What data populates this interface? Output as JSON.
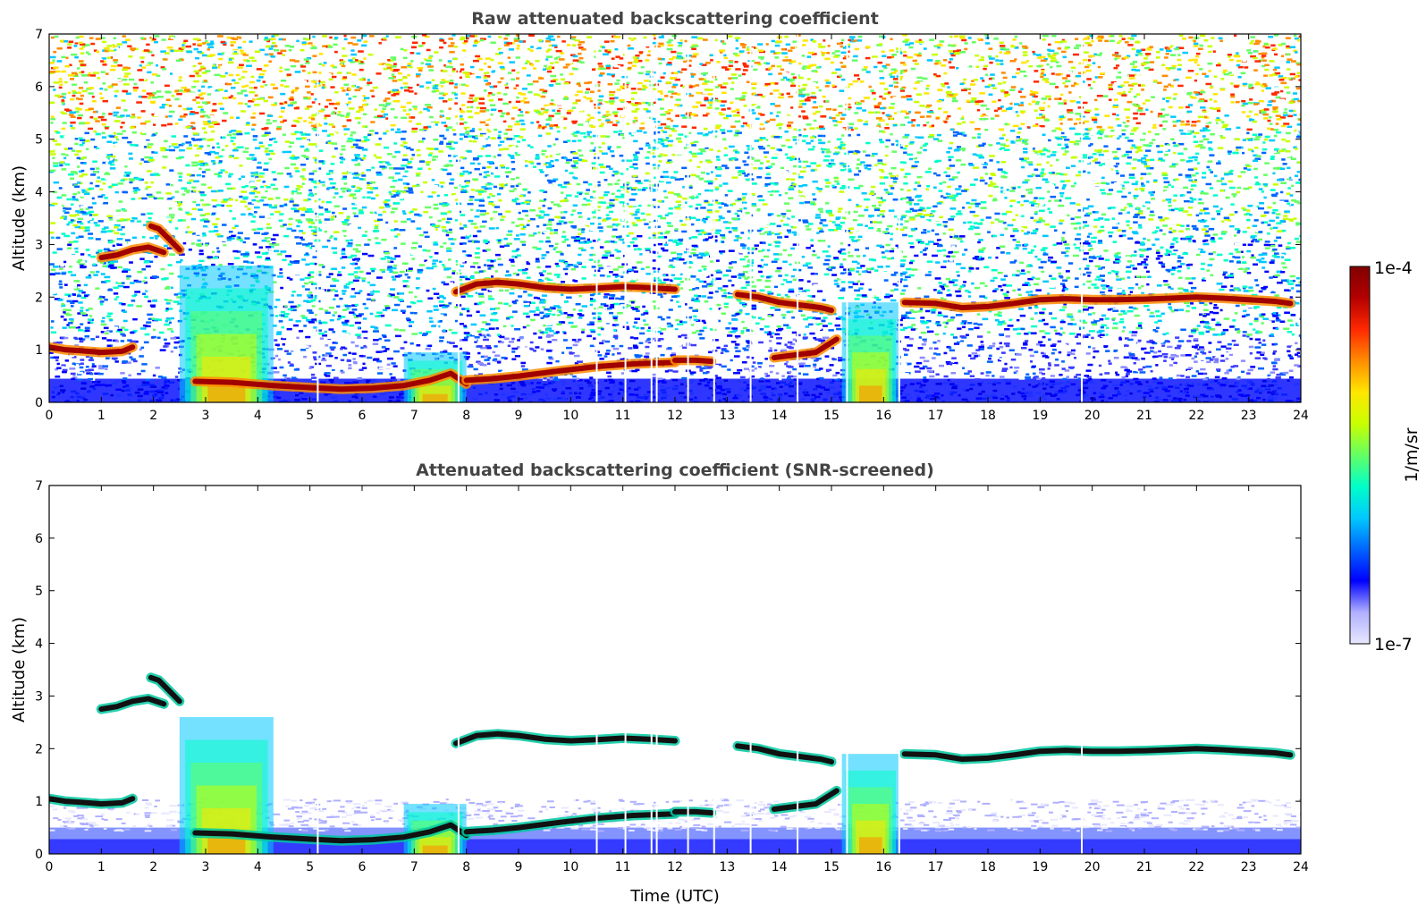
{
  "chart_data": [
    {
      "type": "heatmap",
      "title": "Raw attenuated backscattering coefficient",
      "xlabel": "",
      "ylabel": "Altitude (km)",
      "xlim": [
        0,
        24
      ],
      "ylim": [
        0,
        7
      ],
      "x_ticks": [
        "0",
        "1",
        "2",
        "3",
        "4",
        "5",
        "6",
        "7",
        "8",
        "9",
        "10",
        "11",
        "12",
        "13",
        "14",
        "15",
        "16",
        "17",
        "18",
        "19",
        "20",
        "21",
        "22",
        "23",
        "24"
      ],
      "y_ticks": [
        "0",
        "1",
        "2",
        "3",
        "4",
        "5",
        "6",
        "7"
      ],
      "screened": false,
      "layers": [
        {
          "x": [
            0.0,
            0.3,
            0.6,
            1.0,
            1.4,
            1.6
          ],
          "y": [
            1.05,
            1.0,
            0.98,
            0.95,
            0.97,
            1.05
          ]
        },
        {
          "x": [
            1.0,
            1.3,
            1.6,
            1.9,
            2.2
          ],
          "y": [
            2.75,
            2.8,
            2.9,
            2.95,
            2.85
          ]
        },
        {
          "x": [
            1.95,
            2.1,
            2.3,
            2.5
          ],
          "y": [
            3.35,
            3.3,
            3.1,
            2.9
          ]
        },
        {
          "x": [
            2.8,
            3.5,
            4.3,
            5.0,
            5.6,
            6.2,
            6.8,
            7.3,
            7.7,
            8.0
          ],
          "y": [
            0.4,
            0.38,
            0.32,
            0.28,
            0.25,
            0.27,
            0.32,
            0.42,
            0.55,
            0.35
          ]
        },
        {
          "x": [
            8.0,
            8.5,
            9.0,
            9.8,
            10.5,
            11.2,
            12.0
          ],
          "y": [
            0.42,
            0.45,
            0.5,
            0.6,
            0.68,
            0.73,
            0.76
          ]
        },
        {
          "x": [
            12.0,
            12.4,
            12.7
          ],
          "y": [
            0.8,
            0.8,
            0.78
          ]
        },
        {
          "x": [
            7.8,
            8.2,
            8.6,
            9.0,
            9.5,
            10.0,
            10.5,
            11.0,
            11.5,
            12.0
          ],
          "y": [
            2.1,
            2.25,
            2.28,
            2.25,
            2.18,
            2.15,
            2.17,
            2.2,
            2.18,
            2.15
          ]
        },
        {
          "x": [
            13.2,
            13.6,
            14.0,
            14.4,
            14.8,
            15.0
          ],
          "y": [
            2.05,
            2.0,
            1.9,
            1.85,
            1.8,
            1.75
          ]
        },
        {
          "x": [
            13.9,
            14.3,
            14.7,
            15.1
          ],
          "y": [
            0.85,
            0.9,
            0.95,
            1.2
          ]
        },
        {
          "x": [
            16.4,
            17.0,
            17.5,
            18.0,
            18.5,
            19.0,
            19.5,
            20.0,
            20.5,
            21.0,
            21.5,
            22.0,
            22.5,
            23.0,
            23.5,
            23.8
          ],
          "y": [
            1.9,
            1.88,
            1.8,
            1.82,
            1.88,
            1.95,
            1.97,
            1.95,
            1.95,
            1.96,
            1.98,
            2.0,
            1.98,
            1.95,
            1.92,
            1.88
          ]
        }
      ],
      "aerosol_plumes": [
        {
          "x0": 2.5,
          "x1": 4.3,
          "top": 2.6
        },
        {
          "x0": 6.8,
          "x1": 8.0,
          "top": 0.95
        },
        {
          "x0": 15.2,
          "x1": 16.3,
          "top": 1.9
        }
      ],
      "gaps_x": [
        5.15,
        7.85,
        10.5,
        11.05,
        11.55,
        11.65,
        12.25,
        12.75,
        13.45,
        14.35,
        15.3,
        16.3,
        19.8
      ]
    },
    {
      "type": "heatmap",
      "title": "Attenuated backscattering coefficient (SNR-screened)",
      "xlabel": "Time (UTC)",
      "ylabel": "Altitude (km)",
      "xlim": [
        0,
        24
      ],
      "ylim": [
        0,
        7
      ],
      "x_ticks": [
        "0",
        "1",
        "2",
        "3",
        "4",
        "5",
        "6",
        "7",
        "8",
        "9",
        "10",
        "11",
        "12",
        "13",
        "14",
        "15",
        "16",
        "17",
        "18",
        "19",
        "20",
        "21",
        "22",
        "23",
        "24"
      ],
      "y_ticks": [
        "0",
        "1",
        "2",
        "3",
        "4",
        "5",
        "6",
        "7"
      ],
      "screened": true,
      "layers": [
        {
          "x": [
            0.0,
            0.3,
            0.6,
            1.0,
            1.4,
            1.6
          ],
          "y": [
            1.05,
            1.0,
            0.98,
            0.95,
            0.97,
            1.05
          ]
        },
        {
          "x": [
            1.0,
            1.3,
            1.6,
            1.9,
            2.2
          ],
          "y": [
            2.75,
            2.8,
            2.9,
            2.95,
            2.85
          ]
        },
        {
          "x": [
            1.95,
            2.1,
            2.3,
            2.5
          ],
          "y": [
            3.35,
            3.3,
            3.1,
            2.9
          ]
        },
        {
          "x": [
            2.8,
            3.5,
            4.3,
            5.0,
            5.6,
            6.2,
            6.8,
            7.3,
            7.7,
            8.0
          ],
          "y": [
            0.4,
            0.38,
            0.32,
            0.28,
            0.25,
            0.27,
            0.32,
            0.42,
            0.55,
            0.35
          ]
        },
        {
          "x": [
            8.0,
            8.5,
            9.0,
            9.8,
            10.5,
            11.2,
            12.0
          ],
          "y": [
            0.42,
            0.45,
            0.5,
            0.6,
            0.68,
            0.73,
            0.76
          ]
        },
        {
          "x": [
            12.0,
            12.4,
            12.7
          ],
          "y": [
            0.8,
            0.8,
            0.78
          ]
        },
        {
          "x": [
            7.8,
            8.2,
            8.6,
            9.0,
            9.5,
            10.0,
            10.5,
            11.0,
            11.5,
            12.0
          ],
          "y": [
            2.1,
            2.25,
            2.28,
            2.25,
            2.18,
            2.15,
            2.17,
            2.2,
            2.18,
            2.15
          ]
        },
        {
          "x": [
            13.2,
            13.6,
            14.0,
            14.4,
            14.8,
            15.0
          ],
          "y": [
            2.05,
            2.0,
            1.9,
            1.85,
            1.8,
            1.75
          ]
        },
        {
          "x": [
            13.9,
            14.3,
            14.7,
            15.1
          ],
          "y": [
            0.85,
            0.9,
            0.95,
            1.2
          ]
        },
        {
          "x": [
            16.4,
            17.0,
            17.5,
            18.0,
            18.5,
            19.0,
            19.5,
            20.0,
            20.5,
            21.0,
            21.5,
            22.0,
            22.5,
            23.0,
            23.5,
            23.8
          ],
          "y": [
            1.9,
            1.88,
            1.8,
            1.82,
            1.88,
            1.95,
            1.97,
            1.95,
            1.95,
            1.96,
            1.98,
            2.0,
            1.98,
            1.95,
            1.92,
            1.88
          ]
        }
      ],
      "aerosol_plumes": [
        {
          "x0": 2.5,
          "x1": 4.3,
          "top": 2.6
        },
        {
          "x0": 6.8,
          "x1": 8.0,
          "top": 0.95
        },
        {
          "x0": 15.2,
          "x1": 16.3,
          "top": 1.9
        }
      ],
      "gaps_x": [
        5.15,
        7.85,
        10.5,
        11.05,
        11.55,
        11.65,
        12.25,
        12.75,
        13.45,
        14.35,
        15.3,
        16.3,
        19.8
      ]
    }
  ],
  "colorbar": {
    "label": "1/m/sr",
    "max_label": "1e-4",
    "min_label": "1e-7",
    "scale": "log",
    "range": [
      1e-07,
      0.0001
    ],
    "colors": [
      "#e8e8ff",
      "#b0b0ff",
      "#0000ff",
      "#0064ff",
      "#00c8ff",
      "#00ffc8",
      "#64ff64",
      "#c8ff00",
      "#ffe600",
      "#ff8c00",
      "#ff2800",
      "#b40000",
      "#800000"
    ]
  }
}
